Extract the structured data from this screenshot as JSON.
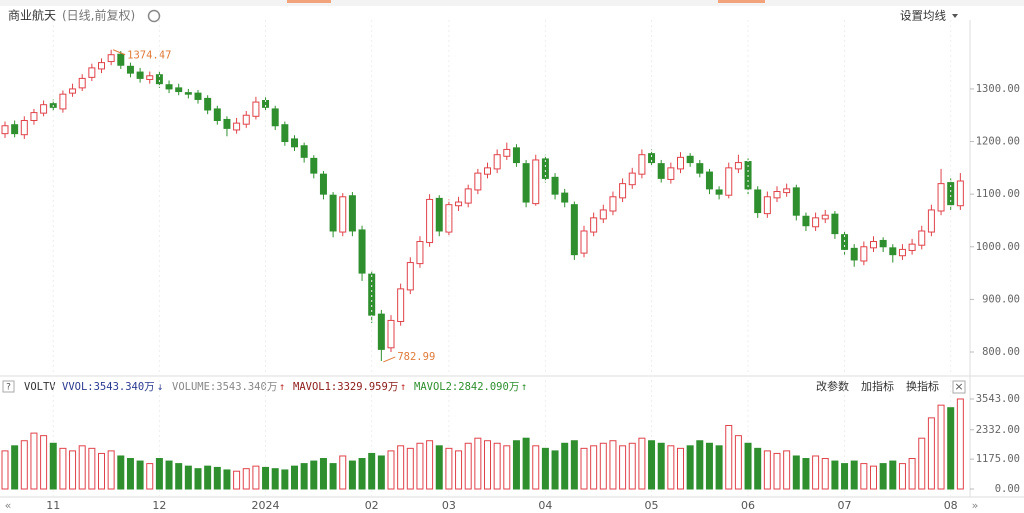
{
  "header": {
    "title": "商业航天",
    "subtitle": "(日线,前复权)",
    "setting": "设置均线"
  },
  "volume_header": {
    "help": "?",
    "indicator": "VOLTV",
    "vvol": "VVOL:3543.340万",
    "vvol_arrow": "↓",
    "volume": "VOLUME:3543.340万",
    "volume_arrow": "↑",
    "mavol1": "MAVOL1:3329.959万",
    "mavol1_arrow": "↑",
    "mavol2": "MAVOL2:2842.090万",
    "mavol2_arrow": "↑",
    "actions": [
      "改参数",
      "加指标",
      "换指标"
    ],
    "close": "×"
  },
  "nav": {
    "prev": "«",
    "next": "»"
  },
  "chart_data": [
    {
      "type": "candlestick",
      "up_color": "#e0424a",
      "down_color": "#2f8f2f",
      "categories": [
        null,
        null,
        null,
        null,
        null,
        "11",
        null,
        null,
        null,
        null,
        null,
        null,
        null,
        null,
        null,
        null,
        "12",
        null,
        null,
        null,
        null,
        null,
        null,
        null,
        null,
        null,
        null,
        "2024",
        null,
        null,
        null,
        null,
        null,
        null,
        null,
        null,
        null,
        null,
        "02",
        null,
        null,
        null,
        null,
        null,
        null,
        null,
        "03",
        null,
        null,
        null,
        null,
        null,
        null,
        null,
        null,
        null,
        "04",
        null,
        null,
        null,
        null,
        null,
        null,
        null,
        null,
        null,
        null,
        "05",
        null,
        null,
        null,
        null,
        null,
        null,
        null,
        null,
        null,
        "06",
        null,
        null,
        null,
        null,
        null,
        null,
        null,
        null,
        null,
        "07",
        null,
        null,
        null,
        null,
        null,
        null,
        null,
        null,
        null,
        null,
        "08",
        null
      ],
      "open": [
        1215,
        1232,
        1213,
        1240,
        1254,
        1272,
        1262,
        1292,
        1302,
        1322,
        1338,
        1352,
        1366,
        1343,
        1332,
        1318,
        1327,
        1308,
        1302,
        1293,
        1292,
        1282,
        1262,
        1242,
        1222,
        1233,
        1248,
        1278,
        1262,
        1232,
        1205,
        1192,
        1168,
        1138,
        1098,
        1028,
        1097,
        1032,
        948,
        872,
        808,
        858,
        918,
        968,
        1008,
        1092,
        1028,
        1078,
        1083,
        1108,
        1138,
        1148,
        1172,
        1188,
        1158,
        1082,
        1167,
        1132,
        1102,
        1080,
        988,
        1028,
        1053,
        1068,
        1093,
        1118,
        1138,
        1177,
        1158,
        1128,
        1148,
        1172,
        1158,
        1142,
        1108,
        1098,
        1148,
        1162,
        1108,
        1063,
        1093,
        1103,
        1112,
        1058,
        1038,
        1053,
        1062,
        1023,
        997,
        973,
        998,
        1012,
        998,
        983,
        993,
        1003,
        1028,
        1068,
        1122,
        1078
      ],
      "high": [
        1238,
        1240,
        1248,
        1262,
        1278,
        1280,
        1297,
        1310,
        1328,
        1348,
        1358,
        1374.47,
        1372,
        1350,
        1340,
        1333,
        1334,
        1316,
        1310,
        1300,
        1298,
        1288,
        1268,
        1248,
        1245,
        1258,
        1285,
        1284,
        1268,
        1238,
        1212,
        1198,
        1174,
        1144,
        1104,
        1102,
        1104,
        1040,
        955,
        880,
        870,
        930,
        980,
        1020,
        1100,
        1098,
        1090,
        1095,
        1118,
        1148,
        1160,
        1185,
        1198,
        1195,
        1165,
        1175,
        1175,
        1140,
        1110,
        1086,
        1040,
        1065,
        1080,
        1105,
        1130,
        1150,
        1185,
        1185,
        1165,
        1160,
        1180,
        1178,
        1165,
        1148,
        1115,
        1160,
        1175,
        1168,
        1115,
        1105,
        1115,
        1120,
        1118,
        1065,
        1065,
        1070,
        1068,
        1030,
        1005,
        1010,
        1020,
        1018,
        1005,
        1005,
        1015,
        1040,
        1080,
        1148,
        1130,
        1140
      ],
      "low": [
        1207,
        1208,
        1205,
        1232,
        1248,
        1258,
        1255,
        1285,
        1296,
        1315,
        1330,
        1345,
        1338,
        1322,
        1312,
        1310,
        1302,
        1292,
        1288,
        1282,
        1272,
        1252,
        1232,
        1210,
        1215,
        1226,
        1242,
        1257,
        1222,
        1192,
        1182,
        1160,
        1130,
        1090,
        1018,
        1020,
        1020,
        935,
        855,
        782.99,
        800,
        850,
        910,
        960,
        1000,
        1020,
        1020,
        1068,
        1075,
        1100,
        1130,
        1140,
        1165,
        1152,
        1075,
        1078,
        1122,
        1090,
        1075,
        975,
        980,
        1020,
        1045,
        1060,
        1085,
        1110,
        1130,
        1152,
        1122,
        1120,
        1140,
        1152,
        1132,
        1100,
        1090,
        1092,
        1140,
        1100,
        1055,
        1055,
        1085,
        1095,
        1050,
        1030,
        1030,
        1045,
        1015,
        985,
        962,
        965,
        990,
        990,
        970,
        975,
        985,
        995,
        1020,
        1060,
        1070,
        1070
      ],
      "close": [
        1230,
        1215,
        1240,
        1255,
        1270,
        1265,
        1290,
        1300,
        1320,
        1340,
        1350,
        1365,
        1345,
        1330,
        1320,
        1325,
        1310,
        1300,
        1295,
        1290,
        1280,
        1260,
        1240,
        1225,
        1235,
        1250,
        1275,
        1265,
        1230,
        1200,
        1190,
        1170,
        1140,
        1100,
        1030,
        1095,
        1030,
        950,
        870,
        805,
        860,
        920,
        970,
        1010,
        1090,
        1030,
        1080,
        1085,
        1110,
        1140,
        1150,
        1175,
        1185,
        1160,
        1085,
        1165,
        1130,
        1100,
        1085,
        985,
        1030,
        1055,
        1070,
        1095,
        1120,
        1140,
        1175,
        1160,
        1130,
        1150,
        1170,
        1160,
        1140,
        1110,
        1100,
        1150,
        1160,
        1110,
        1065,
        1095,
        1105,
        1110,
        1060,
        1040,
        1055,
        1060,
        1025,
        995,
        975,
        1000,
        1010,
        1000,
        985,
        995,
        1005,
        1030,
        1070,
        1120,
        1080,
        1125
      ],
      "ylim": [
        762,
        1431
      ],
      "yticks": [
        {
          "value": 800,
          "label": "800.00"
        },
        {
          "value": 900,
          "label": "900.00"
        },
        {
          "value": 1000,
          "label": "1000.00"
        },
        {
          "value": 1100,
          "label": "1100.00"
        },
        {
          "value": 1200,
          "label": "1200.00"
        },
        {
          "value": 1300,
          "label": "1300.00"
        }
      ]
    },
    {
      "type": "bar",
      "values": [
        1500,
        1700,
        1900,
        2200,
        2100,
        1800,
        1600,
        1500,
        1700,
        1600,
        1400,
        1500,
        1300,
        1200,
        1100,
        1000,
        1200,
        1100,
        1000,
        900,
        800,
        900,
        850,
        750,
        700,
        800,
        900,
        850,
        800,
        750,
        900,
        1000,
        1100,
        1200,
        1000,
        1300,
        1100,
        1200,
        1400,
        1300,
        1500,
        1700,
        1600,
        1800,
        1900,
        1700,
        1600,
        1500,
        1800,
        2000,
        1900,
        1800,
        1700,
        1900,
        2000,
        1700,
        1600,
        1500,
        1800,
        1900,
        1600,
        1700,
        1800,
        1900,
        1700,
        1800,
        2000,
        1900,
        1800,
        1700,
        1600,
        1700,
        1900,
        1800,
        1700,
        2500,
        2100,
        1800,
        1600,
        1500,
        1400,
        1500,
        1300,
        1200,
        1300,
        1200,
        1100,
        1000,
        1100,
        1000,
        900,
        1000,
        1100,
        1000,
        1200,
        2000,
        2800,
        3300,
        3200,
        3543.34
      ],
      "ylim": [
        0,
        3700
      ],
      "yticks": [
        {
          "value": 0,
          "label": "0.00"
        },
        {
          "value": 1175,
          "label": "1175.00"
        },
        {
          "value": 2332,
          "label": "2332.00"
        },
        {
          "value": 3543,
          "label": "3543.00"
        }
      ]
    }
  ]
}
